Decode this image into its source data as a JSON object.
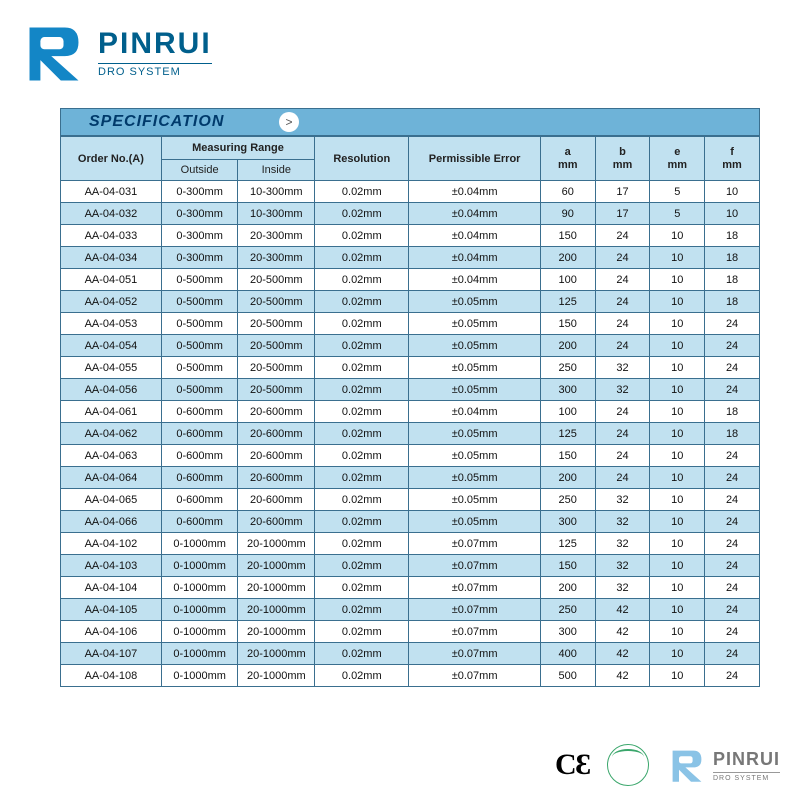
{
  "brand": {
    "name": "PINRUI",
    "subtitle": "DRO SYSTEM",
    "logo_color": "#1386c6",
    "text_color": "#005f8c"
  },
  "footer": {
    "brand_name": "PINRUI",
    "brand_sub": "DRO SYSTEM"
  },
  "spec_table": {
    "title": "SPECIFICATION",
    "arrow_glyph": ">",
    "header_bg": "#6eb3d8",
    "band_a_bg": "#ffffff",
    "band_b_bg": "#c1e1f0",
    "border_color": "#3a6f8f",
    "columns": {
      "order": {
        "label": "Order No.(A)"
      },
      "measuring": {
        "label": "Measuring Range",
        "sub_outside": "Outside",
        "sub_inside": "Inside"
      },
      "resolution": {
        "label": "Resolution"
      },
      "error": {
        "label": "Permissible Error"
      },
      "a": {
        "top": "a",
        "unit": "mm"
      },
      "b": {
        "top": "b",
        "unit": "mm"
      },
      "e": {
        "top": "e",
        "unit": "mm"
      },
      "f": {
        "top": "f",
        "unit": "mm"
      }
    },
    "rows": [
      {
        "order": "AA-04-031",
        "outside": "0-300mm",
        "inside": "10-300mm",
        "res": "0.02mm",
        "err": "±0.04mm",
        "a": "60",
        "b": "17",
        "e": "5",
        "f": "10"
      },
      {
        "order": "AA-04-032",
        "outside": "0-300mm",
        "inside": "10-300mm",
        "res": "0.02mm",
        "err": "±0.04mm",
        "a": "90",
        "b": "17",
        "e": "5",
        "f": "10"
      },
      {
        "order": "AA-04-033",
        "outside": "0-300mm",
        "inside": "20-300mm",
        "res": "0.02mm",
        "err": "±0.04mm",
        "a": "150",
        "b": "24",
        "e": "10",
        "f": "18"
      },
      {
        "order": "AA-04-034",
        "outside": "0-300mm",
        "inside": "20-300mm",
        "res": "0.02mm",
        "err": "±0.04mm",
        "a": "200",
        "b": "24",
        "e": "10",
        "f": "18"
      },
      {
        "order": "AA-04-051",
        "outside": "0-500mm",
        "inside": "20-500mm",
        "res": "0.02mm",
        "err": "±0.04mm",
        "a": "100",
        "b": "24",
        "e": "10",
        "f": "18"
      },
      {
        "order": "AA-04-052",
        "outside": "0-500mm",
        "inside": "20-500mm",
        "res": "0.02mm",
        "err": "±0.05mm",
        "a": "125",
        "b": "24",
        "e": "10",
        "f": "18"
      },
      {
        "order": "AA-04-053",
        "outside": "0-500mm",
        "inside": "20-500mm",
        "res": "0.02mm",
        "err": "±0.05mm",
        "a": "150",
        "b": "24",
        "e": "10",
        "f": "24"
      },
      {
        "order": "AA-04-054",
        "outside": "0-500mm",
        "inside": "20-500mm",
        "res": "0.02mm",
        "err": "±0.05mm",
        "a": "200",
        "b": "24",
        "e": "10",
        "f": "24"
      },
      {
        "order": "AA-04-055",
        "outside": "0-500mm",
        "inside": "20-500mm",
        "res": "0.02mm",
        "err": "±0.05mm",
        "a": "250",
        "b": "32",
        "e": "10",
        "f": "24"
      },
      {
        "order": "AA-04-056",
        "outside": "0-500mm",
        "inside": "20-500mm",
        "res": "0.02mm",
        "err": "±0.05mm",
        "a": "300",
        "b": "32",
        "e": "10",
        "f": "24"
      },
      {
        "order": "AA-04-061",
        "outside": "0-600mm",
        "inside": "20-600mm",
        "res": "0.02mm",
        "err": "±0.04mm",
        "a": "100",
        "b": "24",
        "e": "10",
        "f": "18"
      },
      {
        "order": "AA-04-062",
        "outside": "0-600mm",
        "inside": "20-600mm",
        "res": "0.02mm",
        "err": "±0.05mm",
        "a": "125",
        "b": "24",
        "e": "10",
        "f": "18"
      },
      {
        "order": "AA-04-063",
        "outside": "0-600mm",
        "inside": "20-600mm",
        "res": "0.02mm",
        "err": "±0.05mm",
        "a": "150",
        "b": "24",
        "e": "10",
        "f": "24"
      },
      {
        "order": "AA-04-064",
        "outside": "0-600mm",
        "inside": "20-600mm",
        "res": "0.02mm",
        "err": "±0.05mm",
        "a": "200",
        "b": "24",
        "e": "10",
        "f": "24"
      },
      {
        "order": "AA-04-065",
        "outside": "0-600mm",
        "inside": "20-600mm",
        "res": "0.02mm",
        "err": "±0.05mm",
        "a": "250",
        "b": "32",
        "e": "10",
        "f": "24"
      },
      {
        "order": "AA-04-066",
        "outside": "0-600mm",
        "inside": "20-600mm",
        "res": "0.02mm",
        "err": "±0.05mm",
        "a": "300",
        "b": "32",
        "e": "10",
        "f": "24"
      },
      {
        "order": "AA-04-102",
        "outside": "0-1000mm",
        "inside": "20-1000mm",
        "res": "0.02mm",
        "err": "±0.07mm",
        "a": "125",
        "b": "32",
        "e": "10",
        "f": "24"
      },
      {
        "order": "AA-04-103",
        "outside": "0-1000mm",
        "inside": "20-1000mm",
        "res": "0.02mm",
        "err": "±0.07mm",
        "a": "150",
        "b": "32",
        "e": "10",
        "f": "24"
      },
      {
        "order": "AA-04-104",
        "outside": "0-1000mm",
        "inside": "20-1000mm",
        "res": "0.02mm",
        "err": "±0.07mm",
        "a": "200",
        "b": "32",
        "e": "10",
        "f": "24"
      },
      {
        "order": "AA-04-105",
        "outside": "0-1000mm",
        "inside": "20-1000mm",
        "res": "0.02mm",
        "err": "±0.07mm",
        "a": "250",
        "b": "42",
        "e": "10",
        "f": "24"
      },
      {
        "order": "AA-04-106",
        "outside": "0-1000mm",
        "inside": "20-1000mm",
        "res": "0.02mm",
        "err": "±0.07mm",
        "a": "300",
        "b": "42",
        "e": "10",
        "f": "24"
      },
      {
        "order": "AA-04-107",
        "outside": "0-1000mm",
        "inside": "20-1000mm",
        "res": "0.02mm",
        "err": "±0.07mm",
        "a": "400",
        "b": "42",
        "e": "10",
        "f": "24"
      },
      {
        "order": "AA-04-108",
        "outside": "0-1000mm",
        "inside": "20-1000mm",
        "res": "0.02mm",
        "err": "±0.07mm",
        "a": "500",
        "b": "42",
        "e": "10",
        "f": "24"
      }
    ]
  }
}
